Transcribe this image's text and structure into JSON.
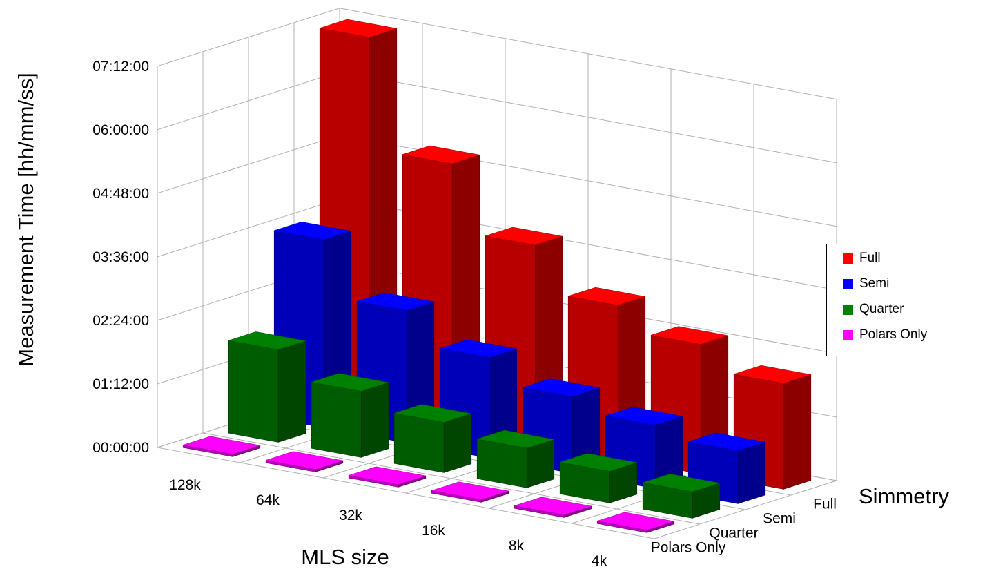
{
  "chart_data": {
    "type": "bar",
    "variant": "3d-grouped",
    "ylabel": "Measurement Time [hh/mm/ss]",
    "xlabel": "MLS size",
    "zlabel": "Simmetry",
    "y_ticks": [
      "00:00:00",
      "01:12:00",
      "02:24:00",
      "03:36:00",
      "04:48:00",
      "06:00:00",
      "07:12:00"
    ],
    "ylim_hours": [
      0,
      7.2
    ],
    "categories": [
      "128k",
      "64k",
      "32k",
      "16k",
      "8k",
      "4k"
    ],
    "depth_categories": [
      "Full",
      "Semi",
      "Quarter",
      "Polars Only"
    ],
    "series": [
      {
        "name": "Full",
        "color": "#ff0000",
        "values_hours": [
          7.1,
          5.0,
          3.75,
          2.9,
          2.45,
          2.0
        ]
      },
      {
        "name": "Semi",
        "color": "#0000ff",
        "values_hours": [
          3.55,
          2.5,
          1.9,
          1.45,
          1.2,
          1.0
        ]
      },
      {
        "name": "Quarter",
        "color": "#008000",
        "values_hours": [
          1.75,
          1.25,
          0.95,
          0.75,
          0.6,
          0.5
        ]
      },
      {
        "name": "Polars Only",
        "color": "#ff00ff",
        "values_hours": [
          0.05,
          0.05,
          0.05,
          0.05,
          0.05,
          0.05
        ]
      }
    ],
    "legend": {
      "position": "right",
      "items": [
        "Full",
        "Semi",
        "Quarter",
        "Polars Only"
      ]
    },
    "grid": true
  }
}
